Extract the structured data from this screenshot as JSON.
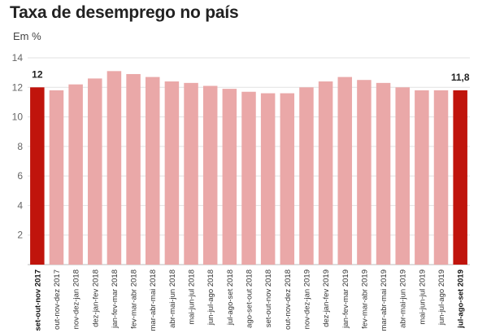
{
  "chart_data": {
    "type": "bar",
    "title": "Taxa de desemprego no país",
    "ylabel": "Em %",
    "ylim": [
      0,
      14
    ],
    "yticks": [
      2,
      4,
      6,
      8,
      10,
      12,
      14
    ],
    "grid": true,
    "colors": {
      "base": "#eaa8a8",
      "highlight": "#c0140c"
    },
    "categories": [
      "set-out-nov 2017",
      "out-nov-dez 2017",
      "nov-dez-jan 2018",
      "dez-jan-fev 2018",
      "jan-fev-mar 2018",
      "fev-mar-abr 2018",
      "mar-abr-mai 2018",
      "abr-mai-jun 2018",
      "mai-jun-jul 2018",
      "jun-jul-ago 2018",
      "jul-ago-set 2018",
      "ago-set-out 2018",
      "set-out-nov 2018",
      "out-nov-dez 2018",
      "nov-dez-jan 2019",
      "dez-jan-fev 2019",
      "jan-fev-mar 2019",
      "fev-mar-abr 2019",
      "mar-abr-mai 2019",
      "abr-mai-jun 2019",
      "mai-jun-jul 2019",
      "jun-jul-ago 2019",
      "jul-ago-set 2019"
    ],
    "values": [
      12.0,
      11.8,
      12.2,
      12.6,
      13.1,
      12.9,
      12.7,
      12.4,
      12.3,
      12.1,
      11.9,
      11.7,
      11.6,
      11.6,
      12.0,
      12.4,
      12.7,
      12.5,
      12.3,
      12.0,
      11.8,
      11.8,
      11.8
    ],
    "highlighted": [
      0,
      22
    ],
    "data_labels": [
      {
        "index": 0,
        "text": "12"
      },
      {
        "index": 22,
        "text": "11,8"
      }
    ]
  }
}
